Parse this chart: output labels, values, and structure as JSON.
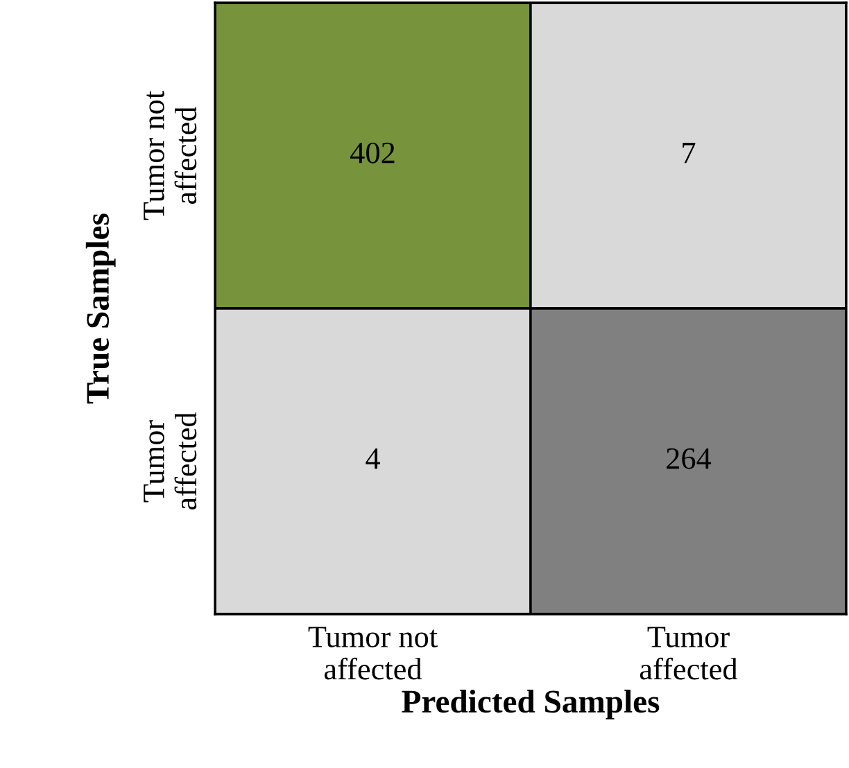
{
  "chart_data": {
    "type": "heatmap",
    "xlabel": "Predicted Samples",
    "ylabel": "True Samples",
    "categories": [
      "Tumor not\naffected",
      "Tumor\naffected"
    ],
    "y_categories": [
      "Tumor not\naffected",
      "Tumor\naffected"
    ],
    "cells": [
      [
        402,
        7
      ],
      [
        4,
        264
      ]
    ],
    "colors": [
      [
        "#77933c",
        "#d9d9d9"
      ],
      [
        "#d9d9d9",
        "#808080"
      ]
    ],
    "data_labels": true
  }
}
